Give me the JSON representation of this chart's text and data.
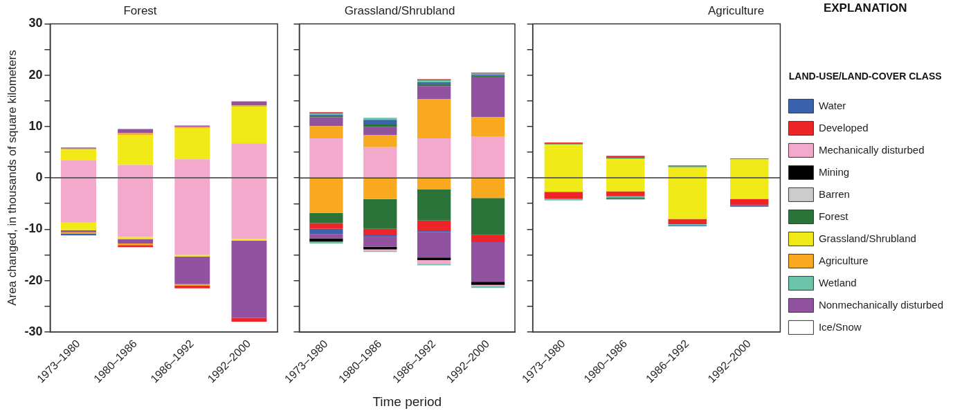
{
  "chart_data": [
    {
      "type": "bar",
      "title": "Forest",
      "ylabel": "Area changed, in thousands of square kilometers",
      "stacked": true,
      "categories": [
        "1973–1980",
        "1980–1986",
        "1986–1992",
        "1992–2000"
      ],
      "ylim": [
        -30,
        30
      ],
      "yticks": [
        -30,
        {
          "value": -25,
          "label": null
        },
        -20,
        {
          "value": -15,
          "label": null
        },
        -10,
        {
          "value": -5,
          "label": null
        },
        0,
        {
          "value": 5,
          "label": null
        },
        10,
        {
          "value": 15,
          "label": null
        },
        20,
        {
          "value": 25,
          "label": null
        },
        30
      ],
      "ref_lines": [
        {
          "axis": "y",
          "value": 0,
          "color": "#333333"
        }
      ],
      "series": [
        {
          "color": "#f3a9cc",
          "values": [
            3.4,
            2.5,
            3.6,
            6.7
          ]
        },
        {
          "color": "#f0ea18",
          "values": [
            2.1,
            5.8,
            6.1,
            7.2
          ]
        },
        {
          "color": "#f8a91f",
          "values": [
            0.2,
            0.4,
            0.2,
            0.2
          ]
        },
        {
          "color": "#91529f",
          "values": [
            0.2,
            0.8,
            0.3,
            0.8
          ]
        },
        {
          "color": "#f3a9cc",
          "values": [
            -8.7,
            -11.5,
            -15.0,
            -11.9
          ]
        },
        {
          "color": "#f0ea18",
          "values": [
            -1.5,
            -0.4,
            -0.3,
            -0.3
          ]
        },
        {
          "color": "#91529f",
          "values": [
            -0.4,
            -0.9,
            -5.4,
            -15.1
          ]
        },
        {
          "color": "#f8a91f",
          "values": [
            -0.3,
            -0.3,
            -0.3,
            null
          ]
        },
        {
          "color": "#3a62ad",
          "values": [
            -0.3,
            null,
            null,
            null
          ]
        },
        {
          "color": "#ee2528",
          "values": [
            null,
            -0.4,
            -0.5,
            -0.7
          ]
        }
      ]
    },
    {
      "type": "bar",
      "title": "Grassland/Shrubland",
      "xlabel": "Time period",
      "stacked": true,
      "tick_labels": "x",
      "categories": [
        "1973–1980",
        "1980–1986",
        "1986–1992",
        "1992–2000"
      ],
      "ylim": [
        -30,
        30
      ],
      "yticks": [
        -30,
        {
          "value": -25,
          "label": null
        },
        -20,
        {
          "value": -15,
          "label": null
        },
        -10,
        {
          "value": -5,
          "label": null
        },
        0,
        {
          "value": 5,
          "label": null
        },
        10,
        {
          "value": 15,
          "label": null
        },
        20,
        {
          "value": 25,
          "label": null
        },
        30
      ],
      "ref_lines": [
        {
          "axis": "y",
          "value": 0,
          "color": "#333333"
        }
      ],
      "series": [
        {
          "color": "#f3a9cc",
          "values": [
            7.7,
            6.0,
            7.7,
            8.0
          ]
        },
        {
          "color": "#f8a91f",
          "values": [
            2.4,
            2.3,
            7.6,
            3.8
          ]
        },
        {
          "color": "#91529f",
          "values": [
            1.7,
            1.6,
            2.6,
            7.9
          ]
        },
        {
          "color": "#2b7339",
          "values": [
            0.3,
            0.5,
            0.4,
            0.2
          ]
        },
        {
          "color": "#3a62ad",
          "values": [
            0.2,
            0.9,
            0.3,
            0.2
          ]
        },
        {
          "color": "#6cc5ab",
          "values": [
            0.2,
            0.4,
            0.4,
            0.2
          ]
        },
        {
          "color": "#ee2528",
          "values": [
            0.3,
            null,
            0.2,
            0.2
          ]
        },
        {
          "color": "#f8a91f",
          "values": [
            -6.8,
            -4.1,
            -2.2,
            -3.9
          ]
        },
        {
          "color": "#2b7339",
          "values": [
            -2.0,
            -5.8,
            -6.1,
            -7.2
          ]
        },
        {
          "color": "#ee2528",
          "values": [
            -1.1,
            -1.1,
            -1.9,
            -1.4
          ]
        },
        {
          "color": "#3a62ad",
          "values": [
            -1.0,
            -0.3,
            -0.3,
            null
          ]
        },
        {
          "color": "#91529f",
          "values": [
            -0.9,
            -2.1,
            -5.0,
            -7.7
          ]
        },
        {
          "color": "#000000",
          "values": [
            -0.6,
            -0.5,
            -0.5,
            -0.6
          ]
        },
        {
          "color": "#f3a9cc",
          "values": [
            null,
            -0.3,
            -0.7,
            -0.3
          ]
        },
        {
          "color": "#6cc5ab",
          "values": [
            -0.4,
            -0.2,
            -0.3,
            -0.3
          ]
        }
      ]
    },
    {
      "type": "bar",
      "title": "Agriculture",
      "stacked": true,
      "tick_labels": "x",
      "legend": "right",
      "legend_title": "LAND-USE/LAND-COVER CLASS",
      "annotations": [
        "EXPLANATION"
      ],
      "categories": [
        "1973–1980",
        "1980–1986",
        "1986–1992",
        "1992–2000"
      ],
      "ylim": [
        -30,
        30
      ],
      "yticks": [
        -30,
        {
          "value": -25,
          "label": null
        },
        -20,
        {
          "value": -15,
          "label": null
        },
        -10,
        {
          "value": -5,
          "label": null
        },
        0,
        {
          "value": 5,
          "label": null
        },
        10,
        {
          "value": 15,
          "label": null
        },
        20,
        {
          "value": 25,
          "label": null
        },
        30
      ],
      "ref_lines": [
        {
          "axis": "y",
          "value": 0,
          "color": "#333333"
        }
      ],
      "series": [
        {
          "name": "Water",
          "color": "#3a62ad",
          "values": [
            null,
            null,
            null,
            null
          ]
        },
        {
          "name": "Developed",
          "color": "#ee2528",
          "values": [
            null,
            null,
            null,
            null
          ]
        },
        {
          "name": "Mechanically disturbed",
          "color": "#f3a9cc",
          "values": [
            null,
            null,
            null,
            null
          ]
        },
        {
          "name": "Mining",
          "color": "#000000",
          "values": [
            null,
            null,
            null,
            null
          ]
        },
        {
          "name": "Barren",
          "color": "#cccccc",
          "values": [
            null,
            null,
            null,
            null
          ]
        },
        {
          "name": "Forest",
          "color": "#2b7339",
          "values": [
            null,
            null,
            null,
            null
          ]
        },
        {
          "name": "Grassland/Shrubland",
          "color": "#f0ea18",
          "values": [
            6.5,
            3.8,
            2.0,
            3.6
          ]
        },
        {
          "name": "Agriculture",
          "color": "#f8a91f",
          "values": [
            null,
            null,
            null,
            null
          ]
        },
        {
          "name": "Wetland",
          "color": "#6cc5ab",
          "values": [
            null,
            null,
            0.2,
            null
          ]
        },
        {
          "name": "Nonmechanically disturbed",
          "color": "#91529f",
          "values": [
            null,
            null,
            null,
            0.2
          ]
        },
        {
          "name": "Ice/Snow",
          "color": "#ffffff",
          "values": [
            null,
            null,
            null,
            null
          ]
        },
        {
          "color": "#2b7339",
          "values": [
            0.2,
            0.2,
            0.2,
            null
          ]
        },
        {
          "color": "#ee2528",
          "values": [
            0.2,
            0.3,
            null,
            null
          ]
        },
        {
          "color": "#f0ea18",
          "values": [
            -2.7,
            -2.6,
            -8.0,
            -4.1
          ]
        },
        {
          "color": "#ee2528",
          "values": [
            -1.4,
            -1.0,
            -1.0,
            -1.2
          ]
        },
        {
          "color": "#6cc5ab",
          "values": [
            -0.3,
            -0.2,
            -0.2,
            null
          ]
        },
        {
          "color": "#2b7339",
          "values": [
            null,
            -0.2,
            null,
            null
          ]
        },
        {
          "color": "#3a62ad",
          "values": [
            null,
            -0.2,
            -0.2,
            -0.3
          ]
        }
      ]
    }
  ]
}
